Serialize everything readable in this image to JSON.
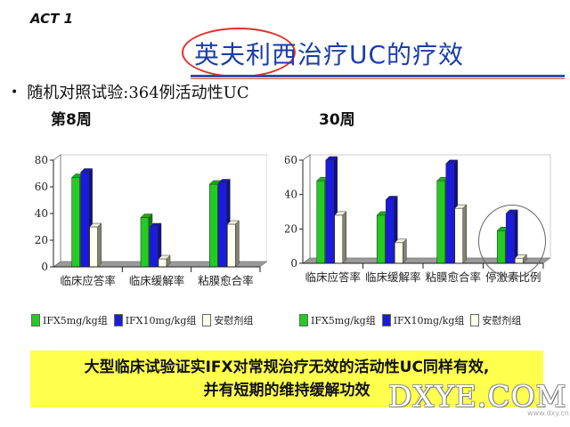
{
  "header": {
    "act_label": "ACT 1",
    "title": "英夫利西治疗UC的疗效"
  },
  "bullet": "随机对照试验:364例活动性UC",
  "colors": {
    "title": "#1a3ea8",
    "green": "#22cc22",
    "blue": "#1a1ae0",
    "placebo": "#fffff0",
    "highlight": "#ffff4d"
  },
  "legend": [
    {
      "label": "IFX5mg/kg组",
      "color": "#22cc22"
    },
    {
      "label": "IFX10mg/kg组",
      "color": "#1a1ae0"
    },
    {
      "label": "安慰剂组",
      "color": "#fffff0"
    }
  ],
  "chart_data": [
    {
      "type": "bar",
      "title": "第8周",
      "categories": [
        "临床应答率",
        "临床缓解率",
        "粘膜愈合率"
      ],
      "series": [
        {
          "name": "IFX5mg/kg组",
          "values": [
            67,
            37,
            62
          ]
        },
        {
          "name": "IFX10mg/kg组",
          "values": [
            71,
            30,
            63
          ]
        },
        {
          "name": "安慰剂组",
          "values": [
            30,
            6,
            32
          ]
        }
      ],
      "ylim": [
        0,
        80
      ],
      "yticks": [
        0,
        20,
        40,
        60,
        80
      ],
      "legend_position": "bottom"
    },
    {
      "type": "bar",
      "title": "30周",
      "categories": [
        "临床应答率",
        "临床缓解率",
        "粘膜愈合率",
        "停激素比例"
      ],
      "series": [
        {
          "name": "IFX5mg/kg组",
          "values": [
            48,
            28,
            48,
            19
          ]
        },
        {
          "name": "IFX10mg/kg组",
          "values": [
            60,
            37,
            58,
            29
          ]
        },
        {
          "name": "安慰剂组",
          "values": [
            28,
            12,
            32,
            3
          ]
        }
      ],
      "ylim": [
        0,
        60
      ],
      "yticks": [
        0,
        20,
        40,
        60
      ],
      "legend_position": "bottom"
    }
  ],
  "conclusion": {
    "line1_a": "大型临床试验证实",
    "line1_b": "IFX",
    "line1_c": "对常规治疗无效的活动性",
    "line1_d": "UC",
    "line1_e": "同样有效,",
    "line2": "并有短期的维持缓解功效"
  },
  "watermark": "DXYE.COM",
  "watermark_small": "www.dxy.cn"
}
